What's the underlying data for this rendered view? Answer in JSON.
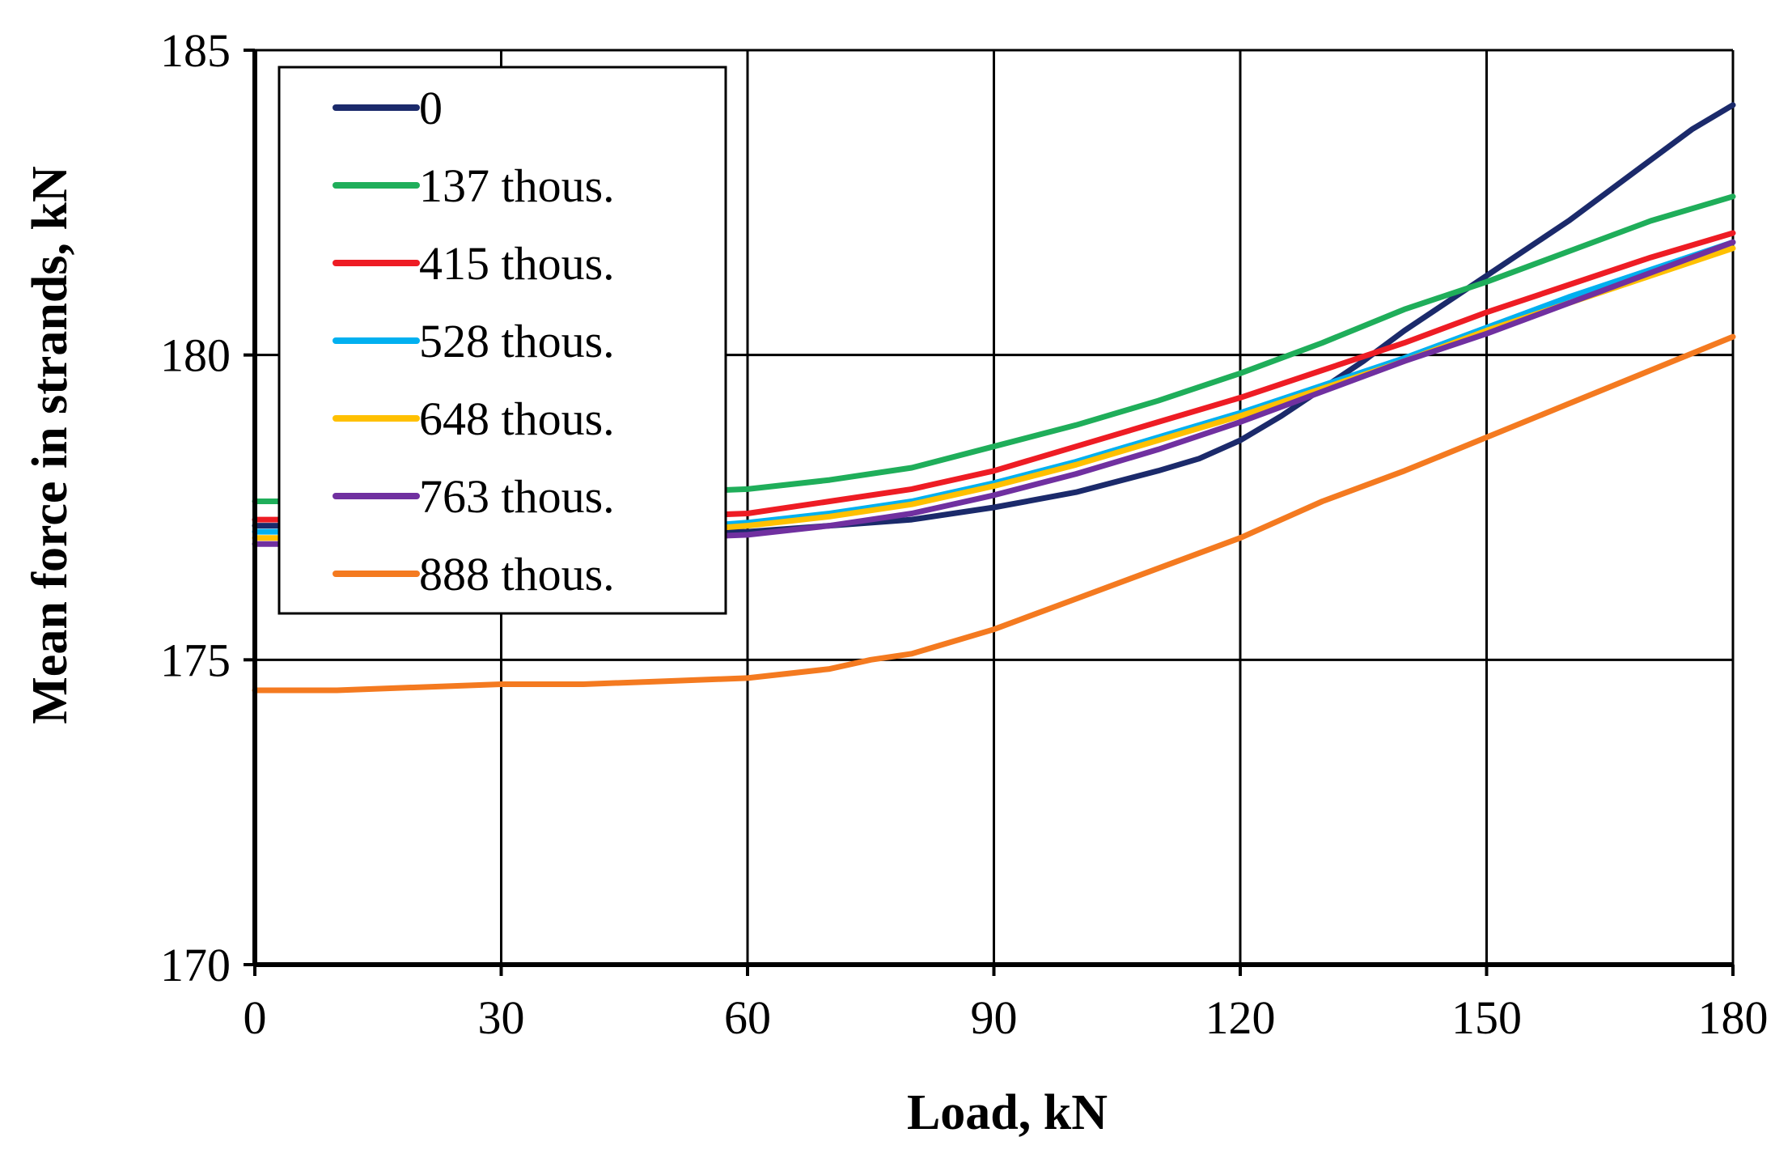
{
  "chart_data": {
    "type": "line",
    "title": "",
    "xlabel": "Load, kN",
    "ylabel": "Mean force in strands, kN",
    "xlim": [
      0,
      180
    ],
    "ylim": [
      170,
      185
    ],
    "xticks": [
      0,
      30,
      60,
      90,
      120,
      150,
      180
    ],
    "yticks": [
      170,
      175,
      180,
      185
    ],
    "xtick_labels": [
      "0",
      "30",
      "60",
      "90",
      "120",
      "150",
      "180"
    ],
    "ytick_labels": [
      "170",
      "175",
      "180",
      "185"
    ],
    "grid": true,
    "legend_position": "top-left",
    "series": [
      {
        "name": "0",
        "color": "#1b2a6b",
        "x": [
          0,
          10,
          20,
          30,
          40,
          50,
          60,
          70,
          80,
          90,
          100,
          110,
          115,
          120,
          125,
          130,
          135,
          140,
          150,
          160,
          170,
          175,
          180
        ],
        "y": [
          177.2,
          177.2,
          177.15,
          177.1,
          177.1,
          177.1,
          177.1,
          177.2,
          177.3,
          177.5,
          177.75,
          178.1,
          178.3,
          178.6,
          179.0,
          179.45,
          179.9,
          180.4,
          181.3,
          182.2,
          183.2,
          183.7,
          184.1
        ]
      },
      {
        "name": "137 thous.",
        "color": "#1fae5a",
        "x": [
          0,
          10,
          20,
          30,
          40,
          50,
          60,
          70,
          80,
          90,
          100,
          110,
          120,
          130,
          140,
          150,
          160,
          170,
          180
        ],
        "y": [
          177.6,
          177.6,
          177.65,
          177.7,
          177.7,
          177.75,
          177.8,
          177.95,
          178.15,
          178.5,
          178.85,
          179.25,
          179.7,
          180.2,
          180.75,
          181.2,
          181.7,
          182.2,
          182.6
        ]
      },
      {
        "name": "415 thous.",
        "color": "#ee1c24",
        "x": [
          0,
          10,
          20,
          30,
          40,
          50,
          60,
          70,
          80,
          90,
          100,
          110,
          120,
          130,
          140,
          150,
          160,
          170,
          180
        ],
        "y": [
          177.3,
          177.3,
          177.3,
          177.3,
          177.3,
          177.35,
          177.4,
          177.6,
          177.8,
          178.1,
          178.5,
          178.9,
          179.3,
          179.75,
          180.2,
          180.7,
          181.15,
          181.6,
          182.0
        ]
      },
      {
        "name": "528 thous.",
        "color": "#00b0f0",
        "x": [
          0,
          10,
          20,
          30,
          40,
          50,
          60,
          70,
          80,
          90,
          100,
          110,
          120,
          130,
          140,
          150,
          160,
          170,
          180
        ],
        "y": [
          177.1,
          177.1,
          177.1,
          177.1,
          177.1,
          177.15,
          177.25,
          177.4,
          177.6,
          177.9,
          178.25,
          178.65,
          179.05,
          179.5,
          179.95,
          180.45,
          180.95,
          181.4,
          181.85
        ]
      },
      {
        "name": "648 thous.",
        "color": "#ffc000",
        "x": [
          0,
          10,
          20,
          30,
          40,
          50,
          60,
          70,
          80,
          90,
          100,
          110,
          120,
          130,
          140,
          150,
          160,
          170,
          180
        ],
        "y": [
          177.0,
          177.0,
          177.0,
          177.0,
          177.05,
          177.1,
          177.2,
          177.35,
          177.55,
          177.85,
          178.2,
          178.6,
          179.0,
          179.45,
          179.9,
          180.4,
          180.85,
          181.3,
          181.75
        ]
      },
      {
        "name": "763 thous.",
        "color": "#7030a0",
        "x": [
          0,
          10,
          20,
          30,
          40,
          50,
          60,
          70,
          80,
          90,
          100,
          110,
          120,
          130,
          140,
          150,
          160,
          170,
          180
        ],
        "y": [
          176.9,
          176.9,
          176.9,
          176.9,
          176.95,
          177.0,
          177.05,
          177.2,
          177.4,
          177.7,
          178.05,
          178.45,
          178.9,
          179.4,
          179.9,
          180.35,
          180.85,
          181.35,
          181.85
        ]
      },
      {
        "name": "888 thous.",
        "color": "#f47a20",
        "x": [
          0,
          10,
          20,
          30,
          40,
          50,
          60,
          70,
          75,
          80,
          90,
          100,
          110,
          120,
          130,
          140,
          150,
          160,
          170,
          180
        ],
        "y": [
          174.5,
          174.5,
          174.55,
          174.6,
          174.6,
          174.65,
          174.7,
          174.85,
          175.0,
          175.1,
          175.5,
          176.0,
          176.5,
          177.0,
          177.6,
          178.1,
          178.65,
          179.2,
          179.75,
          180.3
        ]
      }
    ]
  }
}
